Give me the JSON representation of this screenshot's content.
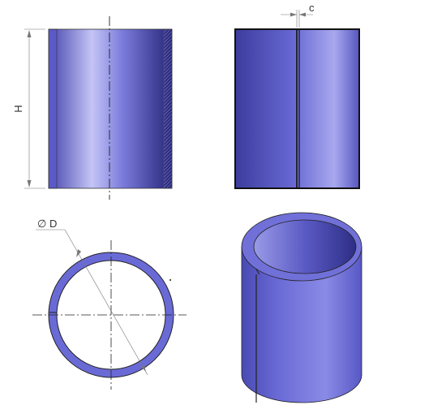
{
  "labels": {
    "height": "H",
    "gap": "c",
    "diameter_symbol": "∅",
    "diameter": "D"
  },
  "colors": {
    "body": "#6a6ad6",
    "body_dark": "#26267a",
    "body_light": "#c4c4f6",
    "inner": "#3a3a98",
    "outline": "#111111",
    "dim_line": "#777777"
  }
}
